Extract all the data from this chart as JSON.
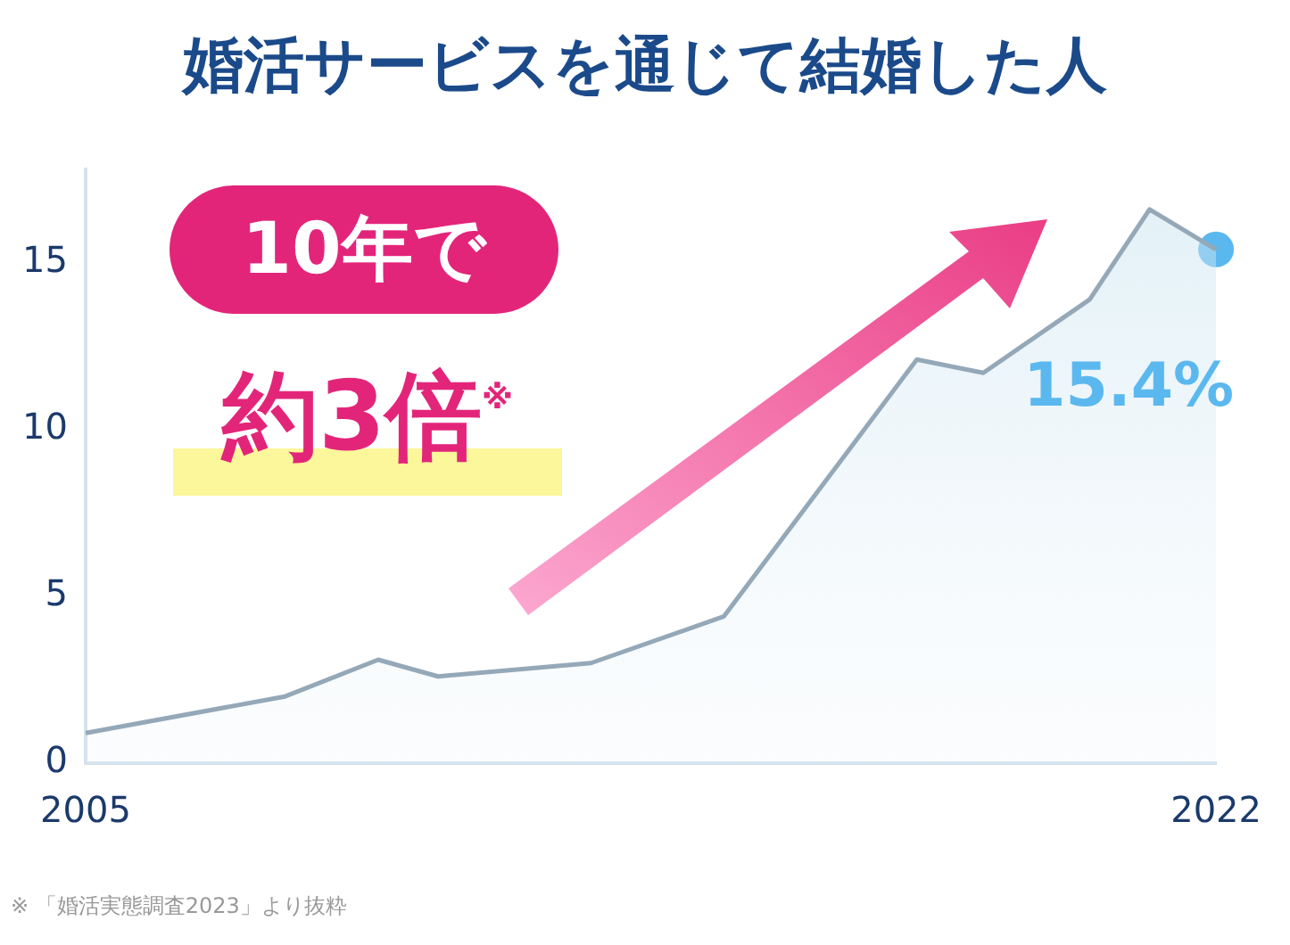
{
  "chart_data": {
    "type": "area",
    "title": "婚活サービスを通じて結婚した人",
    "xlim": [
      2005,
      2022
    ],
    "xticks": [
      2005,
      2022
    ],
    "ylim": [
      0,
      17.8
    ],
    "yticks": [
      0,
      5,
      10,
      15
    ],
    "grid": false,
    "legend": false,
    "series": [
      {
        "color": "#94a8b8",
        "marker": "none",
        "x": [
          2005,
          2008,
          2009.4,
          2010.3,
          2012.6,
          2014.6,
          2017.5,
          2018.5,
          2020.1,
          2021,
          2022
        ],
        "values": [
          0.9,
          2.0,
          3.1,
          2.6,
          3.0,
          4.4,
          12.1,
          11.7,
          13.9,
          16.6,
          15.4
        ]
      },
      {
        "type": "scatter",
        "color": "#5bb8ef",
        "marker": "circle",
        "x": [
          2022
        ],
        "values": [
          15.4
        ],
        "value_labels": [
          "15.4%"
        ]
      }
    ],
    "annotations": [
      "10年で",
      "約3倍$^{※}$",
      "※ 「婚活実態調査2023」より抜粋"
    ]
  }
}
